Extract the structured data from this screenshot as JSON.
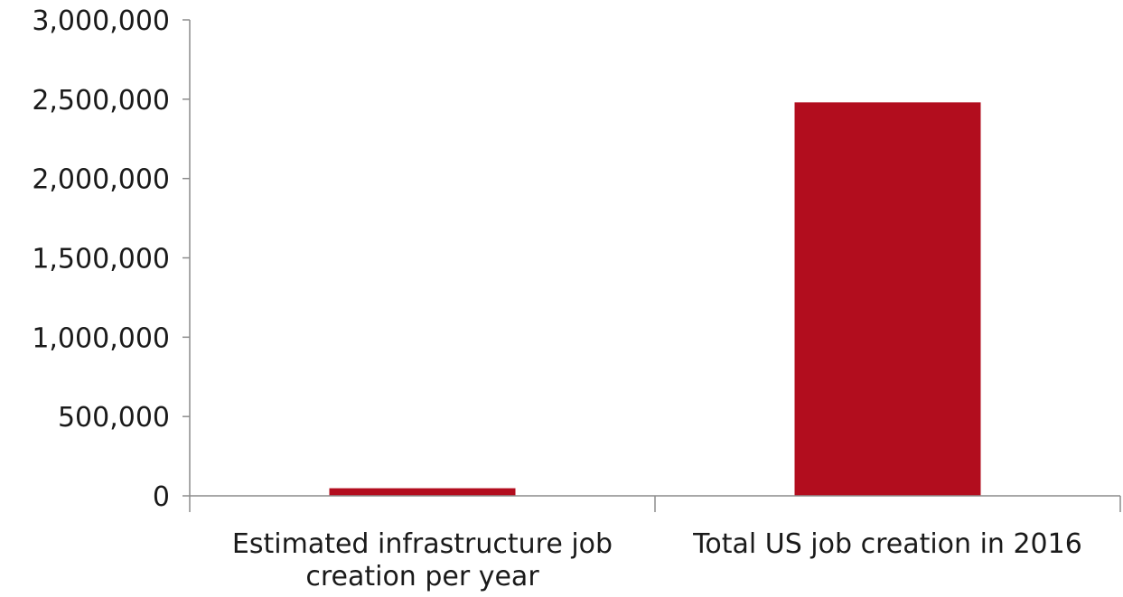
{
  "chart_data": {
    "type": "bar",
    "categories": [
      [
        "Estimated infrastructure job",
        "creation per year"
      ],
      [
        "Total US job creation in 2016"
      ]
    ],
    "values": [
      48000,
      2480000
    ],
    "ylim": [
      0,
      3000000
    ],
    "yticks": [
      0,
      500000,
      1000000,
      1500000,
      2000000,
      2500000,
      3000000
    ],
    "ytick_labels": [
      "0",
      "500,000",
      "1,000,000",
      "1,500,000",
      "2,000,000",
      "2,500,000",
      "3,000,000"
    ],
    "grid": false,
    "legend": "none",
    "bar_color": "#b20d1e",
    "title": "",
    "xlabel": "",
    "ylabel": ""
  }
}
